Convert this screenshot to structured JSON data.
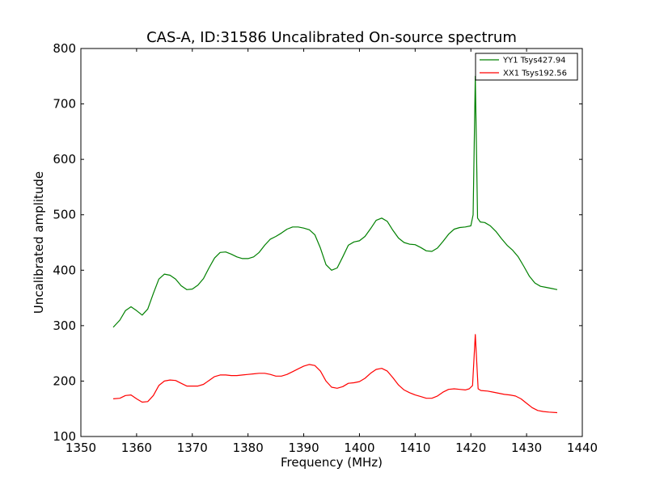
{
  "chart_data": {
    "type": "line",
    "title": "CAS-A, ID:31586 Uncalibrated On-source spectrum",
    "xlabel": "Frequency (MHz)",
    "ylabel": "Uncalibrated amplitude",
    "xlim": [
      1350,
      1440
    ],
    "ylim": [
      100,
      800
    ],
    "xticks": [
      "1350",
      "1360",
      "1370",
      "1380",
      "1390",
      "1400",
      "1410",
      "1420",
      "1430",
      "1440"
    ],
    "yticks": [
      "100",
      "200",
      "300",
      "400",
      "500",
      "600",
      "700",
      "800"
    ],
    "grid": false,
    "legend_position": "top-right",
    "series": [
      {
        "name": "YY1 Tsys427.94",
        "color": "#008000",
        "points": [
          [
            1355.8,
            297
          ],
          [
            1357.0,
            310
          ],
          [
            1358.0,
            327
          ],
          [
            1359.0,
            334
          ],
          [
            1360.0,
            327
          ],
          [
            1361.0,
            319
          ],
          [
            1362.0,
            330
          ],
          [
            1363.0,
            358
          ],
          [
            1364.0,
            384
          ],
          [
            1365.0,
            393
          ],
          [
            1366.0,
            391
          ],
          [
            1367.0,
            384
          ],
          [
            1368.0,
            372
          ],
          [
            1369.0,
            365
          ],
          [
            1370.0,
            366
          ],
          [
            1371.0,
            373
          ],
          [
            1372.0,
            385
          ],
          [
            1373.0,
            404
          ],
          [
            1374.0,
            422
          ],
          [
            1375.0,
            432
          ],
          [
            1376.0,
            433
          ],
          [
            1377.0,
            429
          ],
          [
            1378.0,
            424
          ],
          [
            1379.0,
            421
          ],
          [
            1380.0,
            421
          ],
          [
            1381.0,
            424
          ],
          [
            1382.0,
            432
          ],
          [
            1383.0,
            445
          ],
          [
            1384.0,
            456
          ],
          [
            1385.0,
            461
          ],
          [
            1386.0,
            467
          ],
          [
            1387.0,
            474
          ],
          [
            1388.0,
            478
          ],
          [
            1389.0,
            478
          ],
          [
            1390.0,
            476
          ],
          [
            1391.0,
            473
          ],
          [
            1392.0,
            464
          ],
          [
            1393.0,
            440
          ],
          [
            1394.0,
            410
          ],
          [
            1395.0,
            400
          ],
          [
            1396.0,
            404
          ],
          [
            1397.0,
            424
          ],
          [
            1398.0,
            445
          ],
          [
            1399.0,
            451
          ],
          [
            1400.0,
            453
          ],
          [
            1401.0,
            461
          ],
          [
            1402.0,
            475
          ],
          [
            1403.0,
            490
          ],
          [
            1404.0,
            494
          ],
          [
            1405.0,
            488
          ],
          [
            1406.0,
            472
          ],
          [
            1407.0,
            458
          ],
          [
            1408.0,
            450
          ],
          [
            1409.0,
            447
          ],
          [
            1410.0,
            446
          ],
          [
            1411.0,
            441
          ],
          [
            1412.0,
            435
          ],
          [
            1413.0,
            434
          ],
          [
            1414.0,
            440
          ],
          [
            1415.0,
            452
          ],
          [
            1416.0,
            465
          ],
          [
            1417.0,
            474
          ],
          [
            1418.0,
            477
          ],
          [
            1419.0,
            478
          ],
          [
            1420.0,
            480
          ],
          [
            1420.4,
            500
          ],
          [
            1420.8,
            750
          ],
          [
            1421.2,
            494
          ],
          [
            1421.7,
            487
          ],
          [
            1422.5,
            486
          ],
          [
            1423.5,
            480
          ],
          [
            1424.5,
            470
          ],
          [
            1425.5,
            457
          ],
          [
            1426.5,
            445
          ],
          [
            1427.5,
            436
          ],
          [
            1428.5,
            424
          ],
          [
            1429.5,
            407
          ],
          [
            1430.5,
            389
          ],
          [
            1431.5,
            377
          ],
          [
            1432.5,
            371
          ],
          [
            1433.5,
            369
          ],
          [
            1434.5,
            367
          ],
          [
            1435.5,
            365
          ]
        ]
      },
      {
        "name": "XX1 Tsys192.56",
        "color": "#ff0000",
        "points": [
          [
            1355.8,
            168
          ],
          [
            1357.0,
            169
          ],
          [
            1358.0,
            174
          ],
          [
            1359.0,
            175
          ],
          [
            1360.0,
            168
          ],
          [
            1361.0,
            162
          ],
          [
            1362.0,
            163
          ],
          [
            1363.0,
            174
          ],
          [
            1364.0,
            192
          ],
          [
            1365.0,
            200
          ],
          [
            1366.0,
            202
          ],
          [
            1367.0,
            201
          ],
          [
            1368.0,
            196
          ],
          [
            1369.0,
            191
          ],
          [
            1370.0,
            191
          ],
          [
            1371.0,
            191
          ],
          [
            1372.0,
            194
          ],
          [
            1373.0,
            201
          ],
          [
            1374.0,
            208
          ],
          [
            1375.0,
            211
          ],
          [
            1376.0,
            211
          ],
          [
            1377.0,
            210
          ],
          [
            1378.0,
            210
          ],
          [
            1379.0,
            211
          ],
          [
            1380.0,
            212
          ],
          [
            1381.0,
            213
          ],
          [
            1382.0,
            214
          ],
          [
            1383.0,
            214
          ],
          [
            1384.0,
            212
          ],
          [
            1385.0,
            209
          ],
          [
            1386.0,
            209
          ],
          [
            1387.0,
            212
          ],
          [
            1388.0,
            217
          ],
          [
            1389.0,
            222
          ],
          [
            1390.0,
            227
          ],
          [
            1391.0,
            230
          ],
          [
            1392.0,
            228
          ],
          [
            1393.0,
            218
          ],
          [
            1394.0,
            200
          ],
          [
            1395.0,
            189
          ],
          [
            1396.0,
            187
          ],
          [
            1397.0,
            190
          ],
          [
            1398.0,
            196
          ],
          [
            1399.0,
            197
          ],
          [
            1400.0,
            199
          ],
          [
            1401.0,
            205
          ],
          [
            1402.0,
            214
          ],
          [
            1403.0,
            221
          ],
          [
            1404.0,
            223
          ],
          [
            1405.0,
            218
          ],
          [
            1406.0,
            206
          ],
          [
            1407.0,
            193
          ],
          [
            1408.0,
            184
          ],
          [
            1409.0,
            179
          ],
          [
            1410.0,
            175
          ],
          [
            1411.0,
            172
          ],
          [
            1412.0,
            169
          ],
          [
            1413.0,
            169
          ],
          [
            1414.0,
            173
          ],
          [
            1415.0,
            180
          ],
          [
            1416.0,
            185
          ],
          [
            1417.0,
            186
          ],
          [
            1418.0,
            185
          ],
          [
            1419.0,
            184
          ],
          [
            1419.7,
            186
          ],
          [
            1420.3,
            192
          ],
          [
            1420.8,
            284
          ],
          [
            1421.3,
            186
          ],
          [
            1421.8,
            183
          ],
          [
            1423.0,
            182
          ],
          [
            1424.0,
            180
          ],
          [
            1425.0,
            178
          ],
          [
            1426.0,
            176
          ],
          [
            1427.0,
            175
          ],
          [
            1428.0,
            173
          ],
          [
            1429.0,
            168
          ],
          [
            1430.0,
            160
          ],
          [
            1431.0,
            152
          ],
          [
            1432.0,
            147
          ],
          [
            1433.0,
            145
          ],
          [
            1434.0,
            144
          ],
          [
            1435.5,
            143
          ]
        ]
      }
    ]
  }
}
